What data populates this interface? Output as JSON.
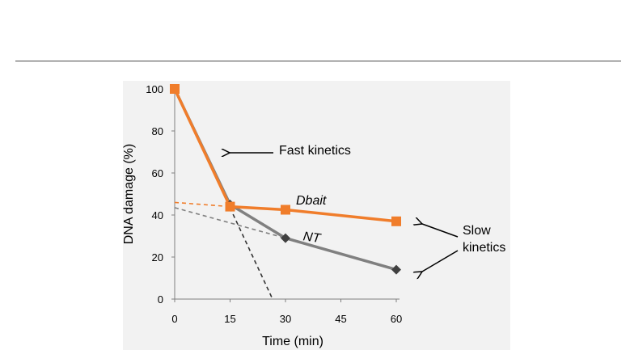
{
  "chart_data": {
    "type": "line",
    "xlabel": "Time (min)",
    "ylabel": "DNA damage (%)",
    "xlim": [
      0,
      60
    ],
    "ylim": [
      0,
      100
    ],
    "xticks": [
      0,
      15,
      30,
      45,
      60
    ],
    "yticks": [
      0,
      20,
      40,
      60,
      80,
      100
    ],
    "grid": false,
    "background": "#f2f2f2",
    "series": [
      {
        "name": "NT",
        "x": [
          0,
          15,
          30,
          60
        ],
        "values": [
          100,
          45,
          29,
          14
        ],
        "color": "#808080",
        "marker": "diamond",
        "marker_color": "#404040"
      },
      {
        "name": "Dbait",
        "x": [
          0,
          15,
          30,
          60
        ],
        "values": [
          100,
          44,
          42.5,
          37
        ],
        "color": "#f07d2b",
        "marker": "square",
        "marker_color": "#f07d2b"
      }
    ],
    "fit_lines": [
      {
        "kind": "fast",
        "x": [
          0,
          26.5
        ],
        "values": [
          100,
          0
        ],
        "color": "#333333"
      },
      {
        "kind": "slow-dbait",
        "x": [
          0,
          15
        ],
        "values": [
          46,
          44
        ],
        "color": "#f07d2b"
      },
      {
        "kind": "slow-nt",
        "x": [
          0,
          30
        ],
        "values": [
          43.5,
          29
        ],
        "color": "#808080"
      }
    ],
    "annotations": {
      "fast": "Fast kinetics",
      "slow_line1": "Slow",
      "slow_line2": "kinetics"
    }
  }
}
